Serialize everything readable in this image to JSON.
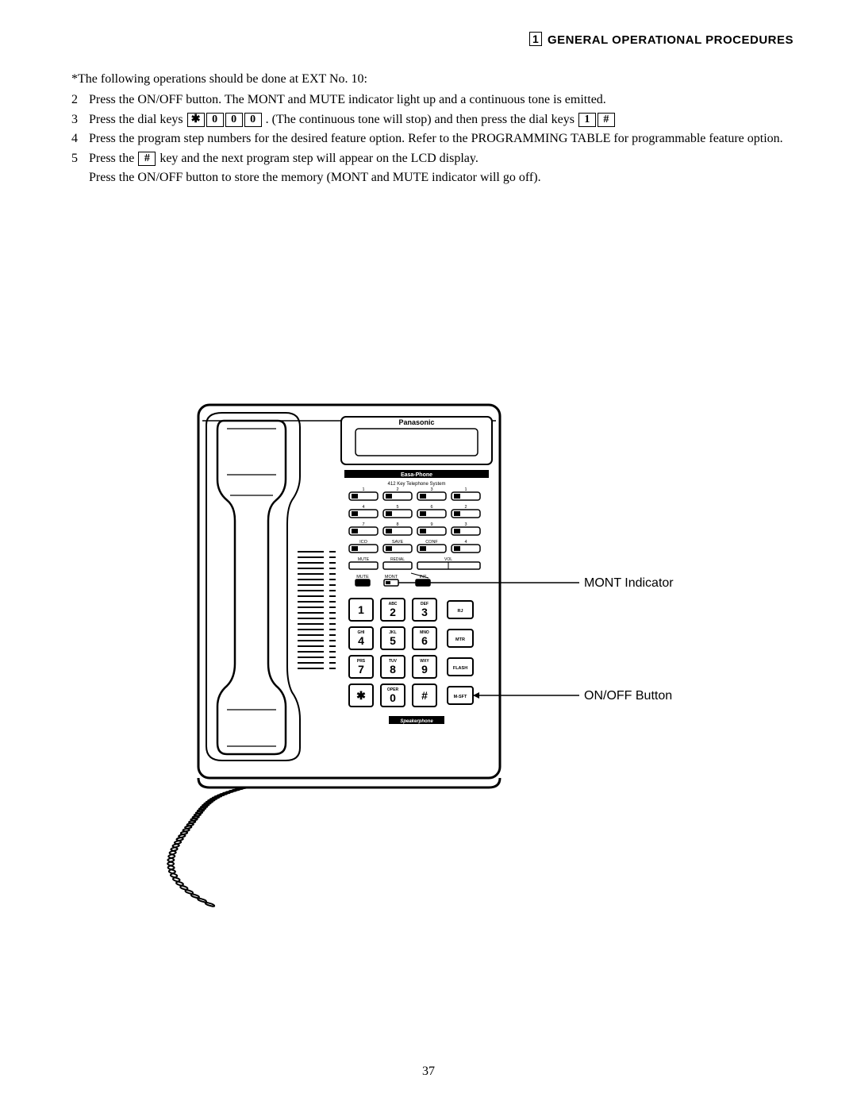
{
  "header": {
    "section_number": "1",
    "section_title": "GENERAL OPERATIONAL PROCEDURES"
  },
  "instructions": {
    "lead": "*The following operations should be done at EXT No. 10:",
    "steps": [
      {
        "num": "2",
        "text_before": "Press the ON/OFF button. The MONT and MUTE indicator light up and a continuous tone is emitted.",
        "keys1": [],
        "text_mid": "",
        "keys2": [],
        "text_after": ""
      },
      {
        "num": "3",
        "text_before": "Press the dial keys ",
        "keys1": [
          "✱",
          "0",
          "0",
          "0"
        ],
        "text_mid": " . (The continuous tone will stop) and then press the dial keys ",
        "keys2": [
          "1",
          "#"
        ],
        "text_after": ""
      },
      {
        "num": "4",
        "text_before": "Press the program step numbers for the desired feature option. Refer to the PROGRAMMING TABLE for programmable feature option.",
        "keys1": [],
        "text_mid": "",
        "keys2": [],
        "text_after": ""
      },
      {
        "num": "5",
        "text_before": "Press the ",
        "keys1": [
          "#"
        ],
        "text_mid": " key and the next program step will appear on the LCD display.",
        "keys2": [],
        "text_after": ""
      }
    ],
    "final_line": "Press the ON/OFF button to store the memory (MONT and MUTE indicator will go off)."
  },
  "phone": {
    "brand": "Panasonic",
    "model_top": "Easa-Phone",
    "model_sub": "412 Key Telephone System",
    "button_rows_top": [
      {
        "labels": [
          "1",
          "2",
          "3",
          "1"
        ]
      },
      {
        "labels": [
          "4",
          "5",
          "6",
          "2"
        ]
      },
      {
        "labels": [
          "7",
          "8",
          "9",
          "3"
        ]
      },
      {
        "labels": [
          "ICO",
          "SAVE",
          "CONF",
          "4"
        ]
      }
    ],
    "thin_row": [
      "MUTE",
      "REDIAL",
      "VOL"
    ],
    "indicator_row": [
      "MUTE",
      "MONT",
      "INT"
    ],
    "keypad": [
      {
        "cells": [
          {
            "top": "",
            "big": "1"
          },
          {
            "top": "ABC",
            "big": "2"
          },
          {
            "top": "DEF",
            "big": "3"
          },
          {
            "top": "",
            "big": "RJ",
            "small": true
          }
        ]
      },
      {
        "cells": [
          {
            "top": "GHI",
            "big": "4"
          },
          {
            "top": "JKL",
            "big": "5"
          },
          {
            "top": "MNO",
            "big": "6"
          },
          {
            "top": "",
            "big": "MTR",
            "small": true
          }
        ]
      },
      {
        "cells": [
          {
            "top": "PRS",
            "big": "7"
          },
          {
            "top": "TUV",
            "big": "8"
          },
          {
            "top": "WXY",
            "big": "9"
          },
          {
            "top": "",
            "big": "FLASH",
            "small": true
          }
        ]
      },
      {
        "cells": [
          {
            "top": "",
            "big": "✱"
          },
          {
            "top": "OPER",
            "big": "0"
          },
          {
            "top": "",
            "big": "#"
          },
          {
            "top": "",
            "big": "M-SFT",
            "small": true
          }
        ]
      }
    ],
    "speaker_label": "Speakerphone",
    "callouts": {
      "mont": "MONT Indicator",
      "onoff": "ON/OFF Button"
    },
    "style": {
      "stroke": "#000000",
      "fill_light": "#ffffff",
      "fill_shade": "#e8e8e8"
    }
  },
  "page_number": "37"
}
